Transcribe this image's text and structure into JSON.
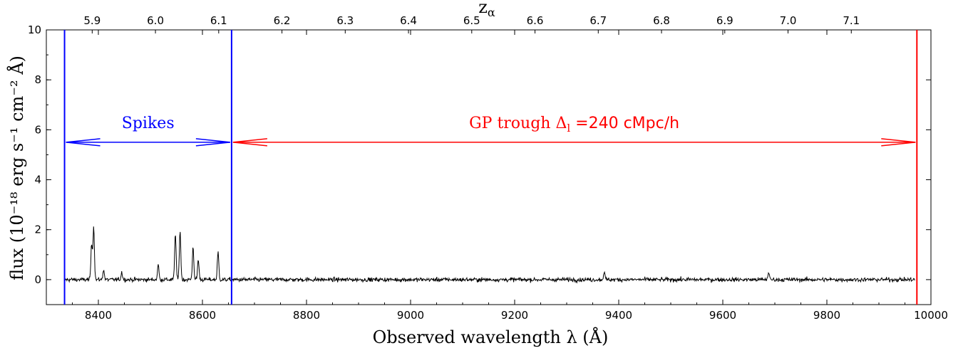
{
  "chart_data": {
    "type": "line",
    "xlabel": "Observed wavelength λ (Å)",
    "ylabel": "flux (10⁻¹⁸ erg s⁻¹ cm⁻² Å)",
    "top_axis_label": "z_α",
    "xlim": [
      8300,
      10000
    ],
    "ylim": [
      -1,
      10
    ],
    "x_ticks": [
      "8400",
      "8600",
      "8800",
      "9000",
      "9200",
      "9400",
      "9600",
      "9800",
      "10000"
    ],
    "x_tick_values": [
      8400,
      8600,
      8800,
      9000,
      9200,
      9400,
      9600,
      9800,
      10000
    ],
    "y_ticks": [
      "0",
      "2",
      "4",
      "6",
      "8",
      "10"
    ],
    "y_tick_values": [
      0,
      2,
      4,
      6,
      8,
      10
    ],
    "top_ticks": [
      "5.9",
      "6.0",
      "6.1",
      "6.2",
      "6.3",
      "6.4",
      "6.5",
      "6.6",
      "6.7",
      "6.8",
      "6.9",
      "7.0",
      "7.1"
    ],
    "top_tick_values": [
      5.9,
      6.0,
      6.1,
      6.2,
      6.3,
      6.4,
      6.5,
      6.6,
      6.7,
      6.8,
      6.9,
      7.0,
      7.1
    ],
    "lyman_alpha_rest_A": 1215.67,
    "series": [
      {
        "color": "#000000",
        "x_range": [
          8335,
          9970
        ],
        "baseline": 0,
        "noise_sigma": 0.07,
        "peaks": [
          {
            "x": 8387,
            "y": 1.4
          },
          {
            "x": 8391,
            "y": 2.1
          },
          {
            "x": 8410,
            "y": 0.4
          },
          {
            "x": 8445,
            "y": 0.3
          },
          {
            "x": 8515,
            "y": 0.6
          },
          {
            "x": 8548,
            "y": 1.85
          },
          {
            "x": 8557,
            "y": 1.95
          },
          {
            "x": 8582,
            "y": 1.3
          },
          {
            "x": 8592,
            "y": 0.8
          },
          {
            "x": 8630,
            "y": 1.1
          },
          {
            "x": 9372,
            "y": 0.3
          },
          {
            "x": 9688,
            "y": 0.3
          }
        ]
      }
    ],
    "vlines": [
      {
        "x": 8335,
        "color": "#0000ff"
      },
      {
        "x": 8656,
        "color": "#0000ff"
      },
      {
        "x": 9973,
        "color": "#ff0000"
      }
    ],
    "annotations": [
      {
        "text": "Spikes",
        "color": "#0000ff",
        "x_from": 8335,
        "x_to": 8656,
        "y": 5.5
      },
      {
        "text_prefix": "GP trough Δ",
        "text_sub": "l",
        "text_suffix": " =240 cMpc/h",
        "color": "#ff0000",
        "x_from": 8656,
        "x_to": 9973,
        "y": 5.5
      }
    ]
  }
}
